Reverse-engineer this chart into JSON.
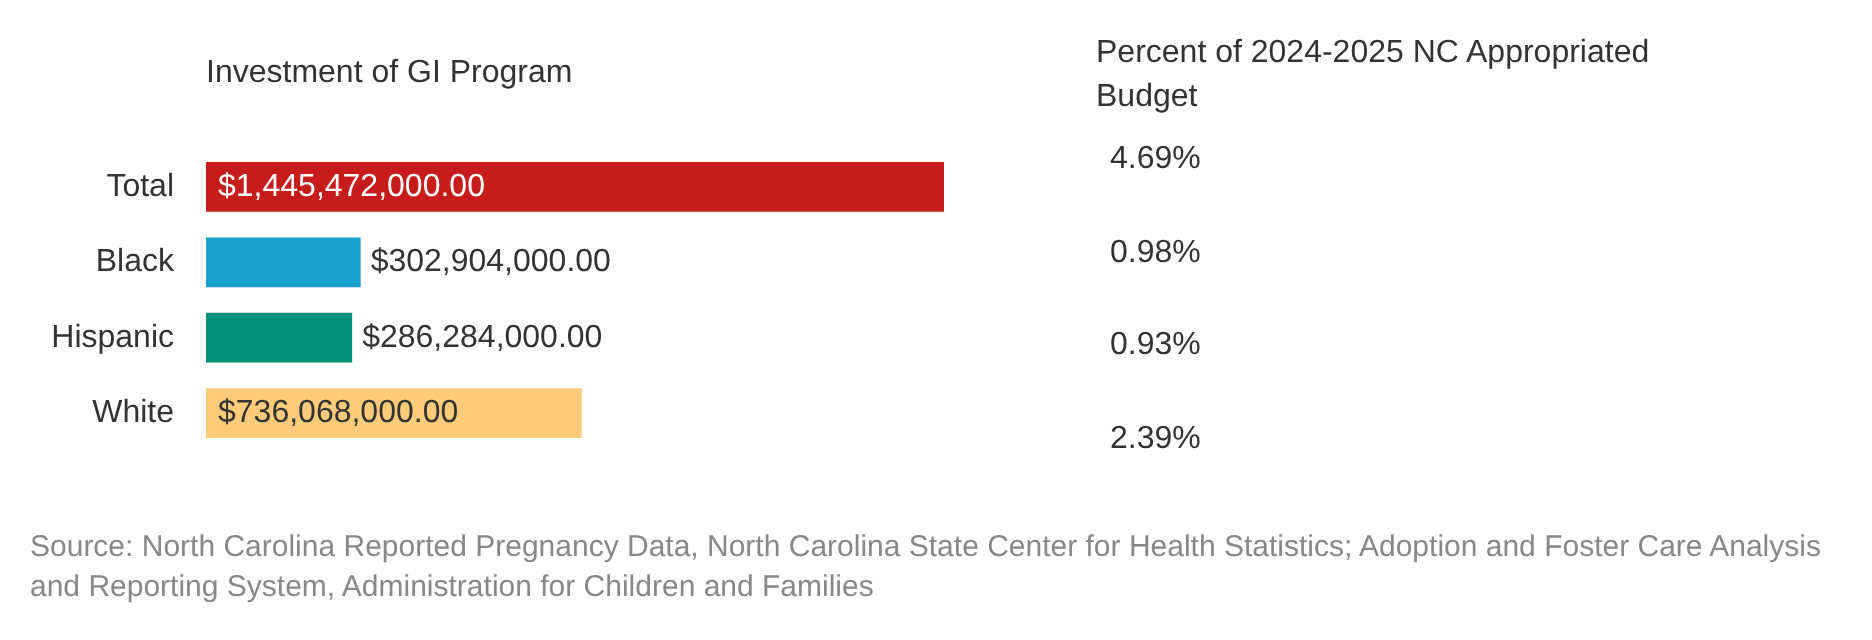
{
  "chart_data": [
    {
      "type": "bar",
      "orientation": "horizontal",
      "title": "Investment of GI Program",
      "categories": [
        "Total",
        "Black",
        "Hispanic",
        "White"
      ],
      "values": [
        1445472000,
        302904000,
        286284000,
        736068000
      ],
      "colors": [
        "#c71c1c",
        "#18a1cd",
        "#00917a",
        "#fecb7a"
      ],
      "value_labels": [
        "$1,445,472,000.00",
        "$302,904,000.00",
        "$286,284,000.00",
        "$736,068,000.00"
      ],
      "annotations": [
        "Source: North Carolina Reported Pregnancy Data, North Carolina State Center for Health Statistics; Adoption and Foster Care Analysis and Reporting System, Administration for Children and Families"
      ]
    },
    {
      "type": "other",
      "title": "Percent of 2024-2025 NC Appropriated Budget",
      "values": [
        4.69,
        0.98,
        0.93,
        2.39
      ],
      "value_labels": [
        "4.69%",
        "0.98%",
        "0.93%",
        "2.39%"
      ]
    }
  ]
}
